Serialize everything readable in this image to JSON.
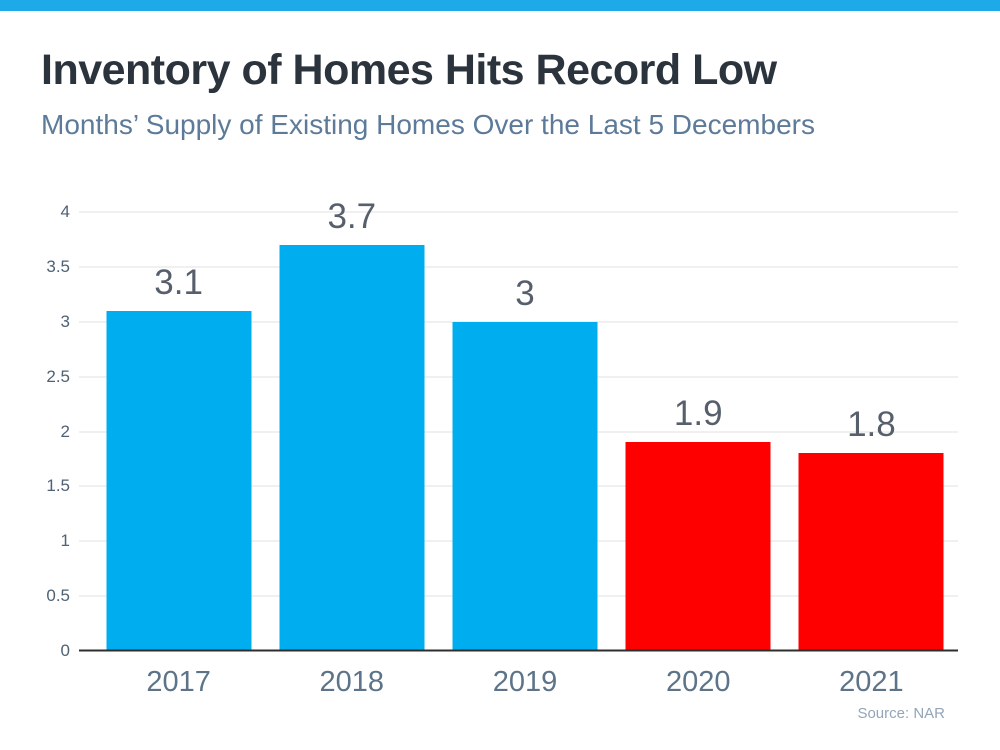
{
  "header": {
    "title": "Inventory of Homes Hits Record Low",
    "subtitle": "Months’ Supply of Existing Homes Over the Last 5 Decembers"
  },
  "chart_data": {
    "type": "bar",
    "title": "Inventory of Homes Hits Record Low",
    "subtitle": "Months’ Supply of Existing Homes Over the Last 5 Decembers",
    "categories": [
      "2017",
      "2018",
      "2019",
      "2020",
      "2021"
    ],
    "values": [
      3.1,
      3.7,
      3,
      1.9,
      1.8
    ],
    "value_labels": [
      "3.1",
      "3.7",
      "3",
      "1.9",
      "1.8"
    ],
    "bar_colors": [
      "#00aeef",
      "#00aeef",
      "#00aeef",
      "#fe0000",
      "#fe0000"
    ],
    "ylim": [
      0,
      4
    ],
    "yticks": [
      0,
      0.5,
      1,
      1.5,
      2,
      2.5,
      3,
      3.5,
      4
    ],
    "ytick_labels": [
      "0",
      "0.5",
      "1",
      "1.5",
      "2",
      "2.5",
      "3",
      "3.5",
      "4"
    ],
    "grid": true,
    "legend": false,
    "xlabel": "",
    "ylabel": "",
    "annotation": "Source: NAR"
  },
  "footer": {
    "source": "Source: NAR"
  },
  "colors": {
    "accent_bar": "#1ea9e9",
    "blue_bar": "#00aeef",
    "red_bar": "#fe0000",
    "title_text": "#2b333d",
    "subtitle_text": "#5d7a99",
    "axis_tick_text": "#4e6175",
    "category_text": "#5d7488",
    "value_label_text": "#565f6b",
    "gridline": "#e0e0e0",
    "axis_line": "#2e2e2e",
    "source_text": "#93a5b8"
  }
}
